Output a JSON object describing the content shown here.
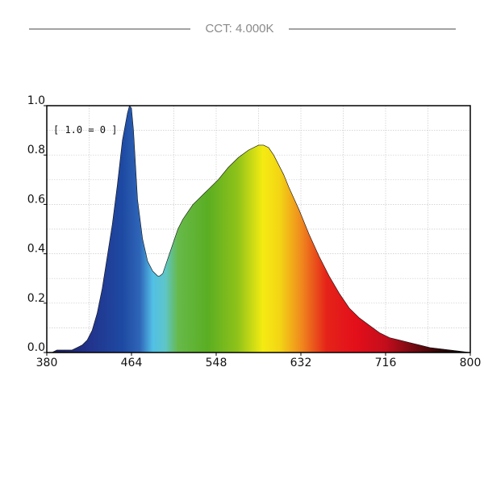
{
  "header": {
    "title": "CCT: 4.000K"
  },
  "chart_data": {
    "type": "area",
    "title": "CCT: 4.000K",
    "xlabel": "",
    "ylabel": "",
    "xlim": [
      380,
      800
    ],
    "ylim": [
      0,
      1.0
    ],
    "grid": true,
    "x_ticks": [
      380,
      464,
      548,
      632,
      716,
      800
    ],
    "y_ticks": [
      0.0,
      0.2,
      0.4,
      0.6,
      0.8,
      1.0
    ],
    "x_tick_labels": [
      "380",
      "464",
      "548",
      "632",
      "716",
      "800"
    ],
    "y_tick_labels": [
      "0.0",
      "0.2",
      "0.4",
      "0.6",
      "0.8",
      "1.0"
    ],
    "annotation": "[ 1.0 = 0 ]",
    "fill": "visible-spectrum-gradient",
    "series": [
      {
        "x": [
          380,
          385,
          390,
          395,
          400,
          405,
          410,
          415,
          420,
          425,
          430,
          435,
          440,
          445,
          450,
          455,
          460,
          462,
          464,
          466,
          468,
          470,
          475,
          480,
          485,
          490,
          492,
          495,
          500,
          505,
          510,
          515,
          520,
          525,
          530,
          540,
          550,
          560,
          570,
          580,
          590,
          595,
          600,
          605,
          610,
          615,
          620,
          630,
          640,
          650,
          660,
          670,
          680,
          690,
          700,
          710,
          720,
          730,
          740,
          750,
          760,
          770,
          780,
          790,
          800
        ],
        "values": [
          0.0,
          0.0,
          0.01,
          0.01,
          0.01,
          0.01,
          0.02,
          0.03,
          0.05,
          0.09,
          0.16,
          0.26,
          0.39,
          0.52,
          0.68,
          0.86,
          0.97,
          1.0,
          0.99,
          0.9,
          0.76,
          0.62,
          0.46,
          0.37,
          0.33,
          0.31,
          0.31,
          0.32,
          0.38,
          0.44,
          0.5,
          0.54,
          0.57,
          0.6,
          0.62,
          0.66,
          0.7,
          0.75,
          0.79,
          0.82,
          0.84,
          0.84,
          0.83,
          0.8,
          0.76,
          0.72,
          0.67,
          0.58,
          0.48,
          0.39,
          0.31,
          0.24,
          0.18,
          0.14,
          0.11,
          0.08,
          0.06,
          0.05,
          0.04,
          0.03,
          0.02,
          0.015,
          0.01,
          0.005,
          0.0
        ]
      }
    ]
  }
}
